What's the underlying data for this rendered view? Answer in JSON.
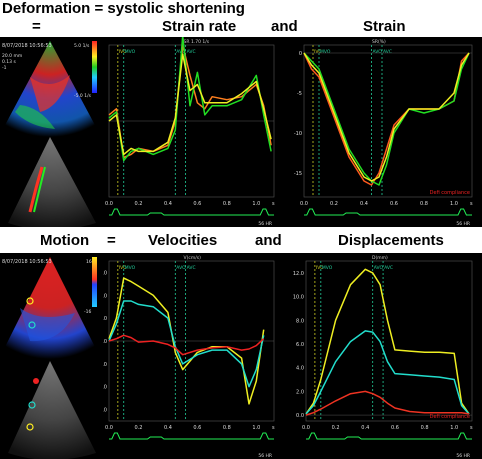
{
  "titles": {
    "line1": "Deformation = systolic shortening",
    "eq": "=",
    "strain_rate": "Strain rate",
    "and1": "and",
    "strain": "Strain",
    "motion": "Motion",
    "eq2": "=",
    "velocities": "Velocities",
    "and2": "and",
    "displacements": "Displacements"
  },
  "top_echo": {
    "date": "8/07/2018 10:56:53",
    "scale_top": "5.0 1/s",
    "scale_bottom": "-5.0 1/s",
    "depth": "20.0 mm",
    "lines": [
      "0.13 s",
      "-1"
    ]
  },
  "bot_echo": {
    "date": "8/07/2018 10:56:53",
    "scale_top": "16",
    "scale_bottom": "-16"
  },
  "common": {
    "events": [
      "IVC",
      "MVO",
      "AVO",
      "AVC"
    ],
    "x_ticks": [
      "0.0",
      "0.2",
      "0.4",
      "0.6",
      "0.8",
      "1.0"
    ],
    "x_unit": "s",
    "hr_label": "56 HR",
    "hr_label2": "11:55 HR"
  },
  "chart_sr": {
    "type": "line",
    "header": "SR 1.70 1/s",
    "ylim": [
      -2.5,
      2.5
    ]
  },
  "chart_strain": {
    "type": "line",
    "header": "SR(%)",
    "y_ticks": [
      "0",
      "-5",
      "-10",
      "-15"
    ],
    "annotation": "Defi compliance"
  },
  "chart_vel": {
    "type": "line",
    "header": "V(cm/s)",
    "y_ticks": [
      "6.0",
      "4.0",
      "2.0",
      "0.0",
      "-2.0",
      "-4.0",
      "-6.0"
    ]
  },
  "chart_disp": {
    "type": "line",
    "header": "D(mm)",
    "y_ticks": [
      "12.0",
      "10.0",
      "8.0",
      "6.0",
      "4.0",
      "2.0",
      "0.0"
    ],
    "annotation": "Defi compliance"
  },
  "chart_data": [
    {
      "type": "line",
      "name": "Strain rate",
      "x": [
        0.0,
        0.05,
        0.1,
        0.15,
        0.2,
        0.3,
        0.4,
        0.45,
        0.5,
        0.55,
        0.6,
        0.65,
        0.7,
        0.8,
        0.9,
        1.0,
        1.05,
        1.1
      ],
      "series": [
        {
          "color": "#ff7f1e",
          "values": [
            0.2,
            0.4,
            -1.2,
            -1.1,
            -0.9,
            -1.0,
            -0.8,
            0.0,
            2.5,
            1.5,
            0.6,
            0.4,
            0.8,
            0.7,
            0.8,
            1.2,
            0.5,
            -0.8
          ]
        },
        {
          "color": "#22dd22",
          "values": [
            0.1,
            0.3,
            -1.3,
            -1.0,
            -0.9,
            -1.1,
            -0.9,
            -0.3,
            2.8,
            0.5,
            1.6,
            0.2,
            0.5,
            0.5,
            0.7,
            1.5,
            0.2,
            -1.0
          ]
        },
        {
          "color": "#eeee22",
          "values": [
            0.0,
            0.2,
            -1.1,
            -0.9,
            -1.0,
            -1.0,
            -0.7,
            0.1,
            2.2,
            1.0,
            1.2,
            0.6,
            0.6,
            0.6,
            0.9,
            1.3,
            0.4,
            -0.6
          ]
        }
      ]
    },
    {
      "type": "line",
      "name": "Strain",
      "x": [
        0.0,
        0.05,
        0.1,
        0.2,
        0.3,
        0.4,
        0.45,
        0.5,
        0.55,
        0.6,
        0.7,
        0.8,
        0.9,
        1.0,
        1.05,
        1.1
      ],
      "series": [
        {
          "color": "#ff5a1e",
          "values": [
            0,
            -2,
            -3,
            -8,
            -13,
            -16,
            -16.5,
            -15,
            -12,
            -9,
            -7,
            -7,
            -7,
            -6,
            -1,
            0
          ]
        },
        {
          "color": "#22dd22",
          "values": [
            0,
            -1,
            -2,
            -7,
            -12,
            -15,
            -16,
            -16.5,
            -14,
            -10,
            -7,
            -7.5,
            -7,
            -6,
            -2,
            0
          ]
        },
        {
          "color": "#eeee22",
          "values": [
            0,
            -1.5,
            -2.5,
            -7.5,
            -12.5,
            -15.5,
            -16,
            -15.5,
            -13,
            -9.5,
            -7,
            -7,
            -7,
            -5,
            -1.5,
            0
          ]
        }
      ]
    },
    {
      "type": "line",
      "name": "Velocities",
      "x": [
        0.0,
        0.05,
        0.1,
        0.15,
        0.2,
        0.3,
        0.4,
        0.45,
        0.5,
        0.6,
        0.7,
        0.8,
        0.9,
        0.95,
        1.0,
        1.05
      ],
      "series": [
        {
          "color": "#eeee22",
          "values": [
            0.2,
            2.0,
            5.5,
            5.2,
            4.8,
            4.0,
            2.5,
            -1.0,
            -2.5,
            -1.0,
            -0.5,
            -0.5,
            -1.5,
            -5.5,
            -3.5,
            1.0
          ]
        },
        {
          "color": "#22ddcc",
          "values": [
            0.0,
            1.5,
            3.5,
            3.5,
            3.2,
            3.0,
            2.0,
            -0.5,
            -2.0,
            -1.2,
            -0.8,
            -0.8,
            -2.0,
            -4.0,
            -2.5,
            0.5
          ]
        },
        {
          "color": "#ee2222",
          "values": [
            0.0,
            0.2,
            0.5,
            0.3,
            -0.1,
            0.0,
            -0.3,
            -0.6,
            -1.2,
            -0.8,
            -0.6,
            -0.5,
            -0.8,
            -0.7,
            -0.4,
            0.2
          ]
        }
      ]
    },
    {
      "type": "line",
      "name": "Displacements",
      "x": [
        0.0,
        0.05,
        0.1,
        0.2,
        0.3,
        0.4,
        0.45,
        0.5,
        0.55,
        0.6,
        0.7,
        0.8,
        0.9,
        1.0,
        1.05,
        1.1
      ],
      "series": [
        {
          "color": "#eeee22",
          "values": [
            0.1,
            1.0,
            3.0,
            8.0,
            11.0,
            12.3,
            12.0,
            11.0,
            8.0,
            5.5,
            5.4,
            5.3,
            5.3,
            5.2,
            1.0,
            0.1
          ]
        },
        {
          "color": "#22ddcc",
          "values": [
            0.1,
            0.8,
            2.0,
            4.5,
            6.2,
            7.1,
            7.0,
            6.2,
            4.5,
            3.5,
            3.4,
            3.3,
            3.2,
            3.0,
            0.8,
            0.1
          ]
        },
        {
          "color": "#ee3322",
          "values": [
            0.0,
            0.2,
            0.5,
            1.2,
            1.8,
            2.0,
            1.8,
            1.5,
            1.0,
            0.6,
            0.3,
            0.2,
            0.2,
            0.2,
            0.2,
            0.1
          ]
        }
      ]
    }
  ]
}
